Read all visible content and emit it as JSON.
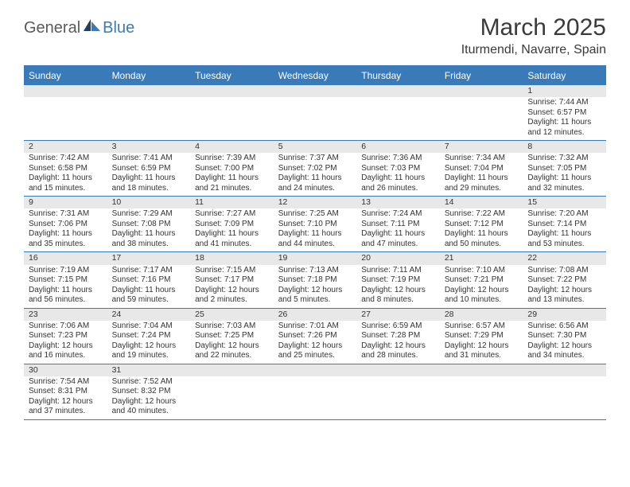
{
  "logo": {
    "word1": "General",
    "word2": "Blue"
  },
  "title": "March 2025",
  "location": "Iturmendi, Navarre, Spain",
  "colors": {
    "header_bg": "#3b7ab8",
    "header_text": "#ffffff",
    "daynum_bg": "#e8e8e8",
    "line": "#3b7ab8",
    "text": "#333333",
    "logo_gray": "#5a5a5a",
    "logo_blue": "#3b7ab8"
  },
  "dayHeaders": [
    "Sunday",
    "Monday",
    "Tuesday",
    "Wednesday",
    "Thursday",
    "Friday",
    "Saturday"
  ],
  "weeks": [
    [
      null,
      null,
      null,
      null,
      null,
      null,
      {
        "n": "1",
        "sunrise": "Sunrise: 7:44 AM",
        "sunset": "Sunset: 6:57 PM",
        "day1": "Daylight: 11 hours",
        "day2": "and 12 minutes."
      }
    ],
    [
      {
        "n": "2",
        "sunrise": "Sunrise: 7:42 AM",
        "sunset": "Sunset: 6:58 PM",
        "day1": "Daylight: 11 hours",
        "day2": "and 15 minutes."
      },
      {
        "n": "3",
        "sunrise": "Sunrise: 7:41 AM",
        "sunset": "Sunset: 6:59 PM",
        "day1": "Daylight: 11 hours",
        "day2": "and 18 minutes."
      },
      {
        "n": "4",
        "sunrise": "Sunrise: 7:39 AM",
        "sunset": "Sunset: 7:00 PM",
        "day1": "Daylight: 11 hours",
        "day2": "and 21 minutes."
      },
      {
        "n": "5",
        "sunrise": "Sunrise: 7:37 AM",
        "sunset": "Sunset: 7:02 PM",
        "day1": "Daylight: 11 hours",
        "day2": "and 24 minutes."
      },
      {
        "n": "6",
        "sunrise": "Sunrise: 7:36 AM",
        "sunset": "Sunset: 7:03 PM",
        "day1": "Daylight: 11 hours",
        "day2": "and 26 minutes."
      },
      {
        "n": "7",
        "sunrise": "Sunrise: 7:34 AM",
        "sunset": "Sunset: 7:04 PM",
        "day1": "Daylight: 11 hours",
        "day2": "and 29 minutes."
      },
      {
        "n": "8",
        "sunrise": "Sunrise: 7:32 AM",
        "sunset": "Sunset: 7:05 PM",
        "day1": "Daylight: 11 hours",
        "day2": "and 32 minutes."
      }
    ],
    [
      {
        "n": "9",
        "sunrise": "Sunrise: 7:31 AM",
        "sunset": "Sunset: 7:06 PM",
        "day1": "Daylight: 11 hours",
        "day2": "and 35 minutes."
      },
      {
        "n": "10",
        "sunrise": "Sunrise: 7:29 AM",
        "sunset": "Sunset: 7:08 PM",
        "day1": "Daylight: 11 hours",
        "day2": "and 38 minutes."
      },
      {
        "n": "11",
        "sunrise": "Sunrise: 7:27 AM",
        "sunset": "Sunset: 7:09 PM",
        "day1": "Daylight: 11 hours",
        "day2": "and 41 minutes."
      },
      {
        "n": "12",
        "sunrise": "Sunrise: 7:25 AM",
        "sunset": "Sunset: 7:10 PM",
        "day1": "Daylight: 11 hours",
        "day2": "and 44 minutes."
      },
      {
        "n": "13",
        "sunrise": "Sunrise: 7:24 AM",
        "sunset": "Sunset: 7:11 PM",
        "day1": "Daylight: 11 hours",
        "day2": "and 47 minutes."
      },
      {
        "n": "14",
        "sunrise": "Sunrise: 7:22 AM",
        "sunset": "Sunset: 7:12 PM",
        "day1": "Daylight: 11 hours",
        "day2": "and 50 minutes."
      },
      {
        "n": "15",
        "sunrise": "Sunrise: 7:20 AM",
        "sunset": "Sunset: 7:14 PM",
        "day1": "Daylight: 11 hours",
        "day2": "and 53 minutes."
      }
    ],
    [
      {
        "n": "16",
        "sunrise": "Sunrise: 7:19 AM",
        "sunset": "Sunset: 7:15 PM",
        "day1": "Daylight: 11 hours",
        "day2": "and 56 minutes."
      },
      {
        "n": "17",
        "sunrise": "Sunrise: 7:17 AM",
        "sunset": "Sunset: 7:16 PM",
        "day1": "Daylight: 11 hours",
        "day2": "and 59 minutes."
      },
      {
        "n": "18",
        "sunrise": "Sunrise: 7:15 AM",
        "sunset": "Sunset: 7:17 PM",
        "day1": "Daylight: 12 hours",
        "day2": "and 2 minutes."
      },
      {
        "n": "19",
        "sunrise": "Sunrise: 7:13 AM",
        "sunset": "Sunset: 7:18 PM",
        "day1": "Daylight: 12 hours",
        "day2": "and 5 minutes."
      },
      {
        "n": "20",
        "sunrise": "Sunrise: 7:11 AM",
        "sunset": "Sunset: 7:19 PM",
        "day1": "Daylight: 12 hours",
        "day2": "and 8 minutes."
      },
      {
        "n": "21",
        "sunrise": "Sunrise: 7:10 AM",
        "sunset": "Sunset: 7:21 PM",
        "day1": "Daylight: 12 hours",
        "day2": "and 10 minutes."
      },
      {
        "n": "22",
        "sunrise": "Sunrise: 7:08 AM",
        "sunset": "Sunset: 7:22 PM",
        "day1": "Daylight: 12 hours",
        "day2": "and 13 minutes."
      }
    ],
    [
      {
        "n": "23",
        "sunrise": "Sunrise: 7:06 AM",
        "sunset": "Sunset: 7:23 PM",
        "day1": "Daylight: 12 hours",
        "day2": "and 16 minutes."
      },
      {
        "n": "24",
        "sunrise": "Sunrise: 7:04 AM",
        "sunset": "Sunset: 7:24 PM",
        "day1": "Daylight: 12 hours",
        "day2": "and 19 minutes."
      },
      {
        "n": "25",
        "sunrise": "Sunrise: 7:03 AM",
        "sunset": "Sunset: 7:25 PM",
        "day1": "Daylight: 12 hours",
        "day2": "and 22 minutes."
      },
      {
        "n": "26",
        "sunrise": "Sunrise: 7:01 AM",
        "sunset": "Sunset: 7:26 PM",
        "day1": "Daylight: 12 hours",
        "day2": "and 25 minutes."
      },
      {
        "n": "27",
        "sunrise": "Sunrise: 6:59 AM",
        "sunset": "Sunset: 7:28 PM",
        "day1": "Daylight: 12 hours",
        "day2": "and 28 minutes."
      },
      {
        "n": "28",
        "sunrise": "Sunrise: 6:57 AM",
        "sunset": "Sunset: 7:29 PM",
        "day1": "Daylight: 12 hours",
        "day2": "and 31 minutes."
      },
      {
        "n": "29",
        "sunrise": "Sunrise: 6:56 AM",
        "sunset": "Sunset: 7:30 PM",
        "day1": "Daylight: 12 hours",
        "day2": "and 34 minutes."
      }
    ],
    [
      {
        "n": "30",
        "sunrise": "Sunrise: 7:54 AM",
        "sunset": "Sunset: 8:31 PM",
        "day1": "Daylight: 12 hours",
        "day2": "and 37 minutes."
      },
      {
        "n": "31",
        "sunrise": "Sunrise: 7:52 AM",
        "sunset": "Sunset: 8:32 PM",
        "day1": "Daylight: 12 hours",
        "day2": "and 40 minutes."
      },
      null,
      null,
      null,
      null,
      null
    ]
  ]
}
